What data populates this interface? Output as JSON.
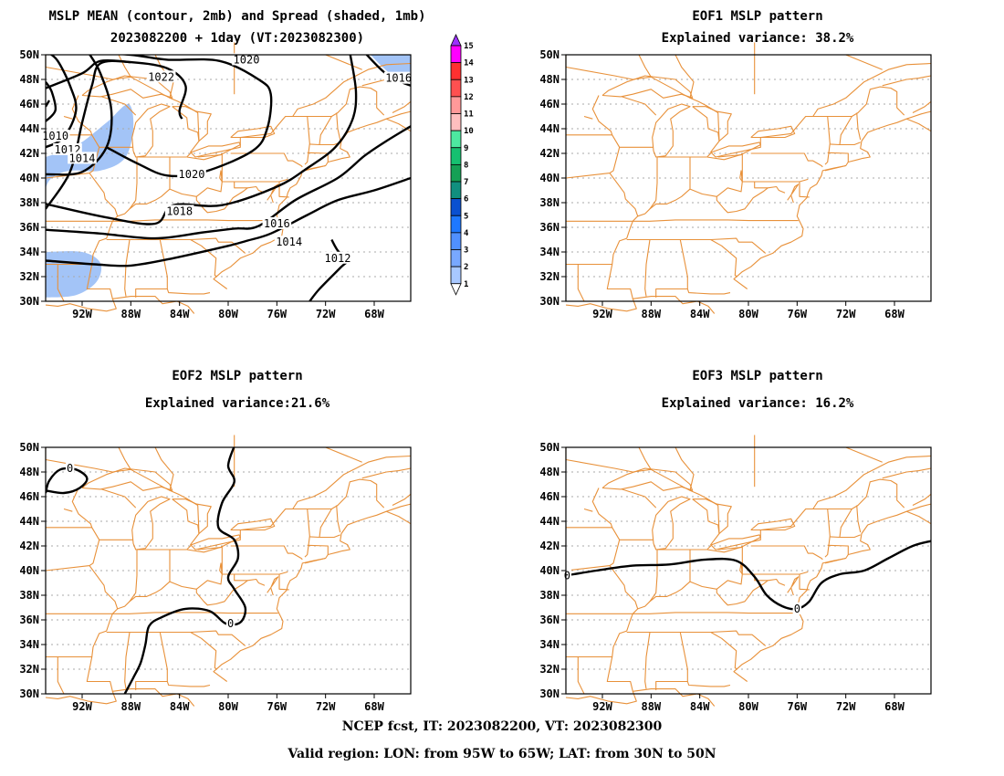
{
  "panels": [
    {
      "id": "mean",
      "title_lines": [
        "MSLP MEAN (contour, 2mb) and Spread (shaded, 1mb)",
        "2023082200 + 1day (VT:2023082300)"
      ]
    },
    {
      "id": "eof1",
      "title_lines": [
        "EOF1 MSLP pattern",
        "Explained variance: 38.2%"
      ]
    },
    {
      "id": "eof2",
      "title_lines": [
        "EOF2 MSLP pattern",
        "Explained variance:21.6%"
      ]
    },
    {
      "id": "eof3",
      "title_lines": [
        "EOF3 MSLP pattern",
        "Explained variance: 16.2%"
      ]
    }
  ],
  "map_axes": {
    "lat_labels": [
      "50N",
      "48N",
      "46N",
      "44N",
      "42N",
      "40N",
      "38N",
      "36N",
      "34N",
      "32N",
      "30N"
    ],
    "lon_labels": [
      "92W",
      "88W",
      "84W",
      "80W",
      "76W",
      "72W",
      "68W"
    ],
    "lon_range": [
      -95,
      -65
    ],
    "lat_range": [
      30,
      50
    ]
  },
  "contour_labels": {
    "mean": [
      "1020",
      "1022",
      "1016",
      "1010",
      "1012",
      "1014",
      "1020",
      "1018",
      "1016",
      "1014",
      "1012"
    ],
    "eof2": [
      "0",
      "0"
    ],
    "eof3": [
      "0",
      "0"
    ]
  },
  "colorbar": {
    "labels": [
      "15",
      "14",
      "13",
      "12",
      "11",
      "10",
      "9",
      "8",
      "7",
      "6",
      "5",
      "4",
      "3",
      "2",
      "1"
    ],
    "colors": [
      "#9b30ff",
      "#ff00ff",
      "#ff3030",
      "#ff5050",
      "#ff9999",
      "#ffbfbf",
      "#4de8a0",
      "#16c070",
      "#15a055",
      "#118f7f",
      "#0a50d0",
      "#1e78ff",
      "#5090ff",
      "#78a8ff",
      "#a8c8ff",
      "#ffffff"
    ]
  },
  "colors": {
    "map_lines": "#e8913a",
    "contour": "#000000",
    "shade": "#a3c4f7",
    "grid": "#aaaaaa"
  },
  "footer": {
    "line1": "NCEP fcst, IT: 2023082200, VT: 2023082300",
    "line2": "Valid region: LON: from 95W to 65W; LAT: from 30N to 50N"
  }
}
